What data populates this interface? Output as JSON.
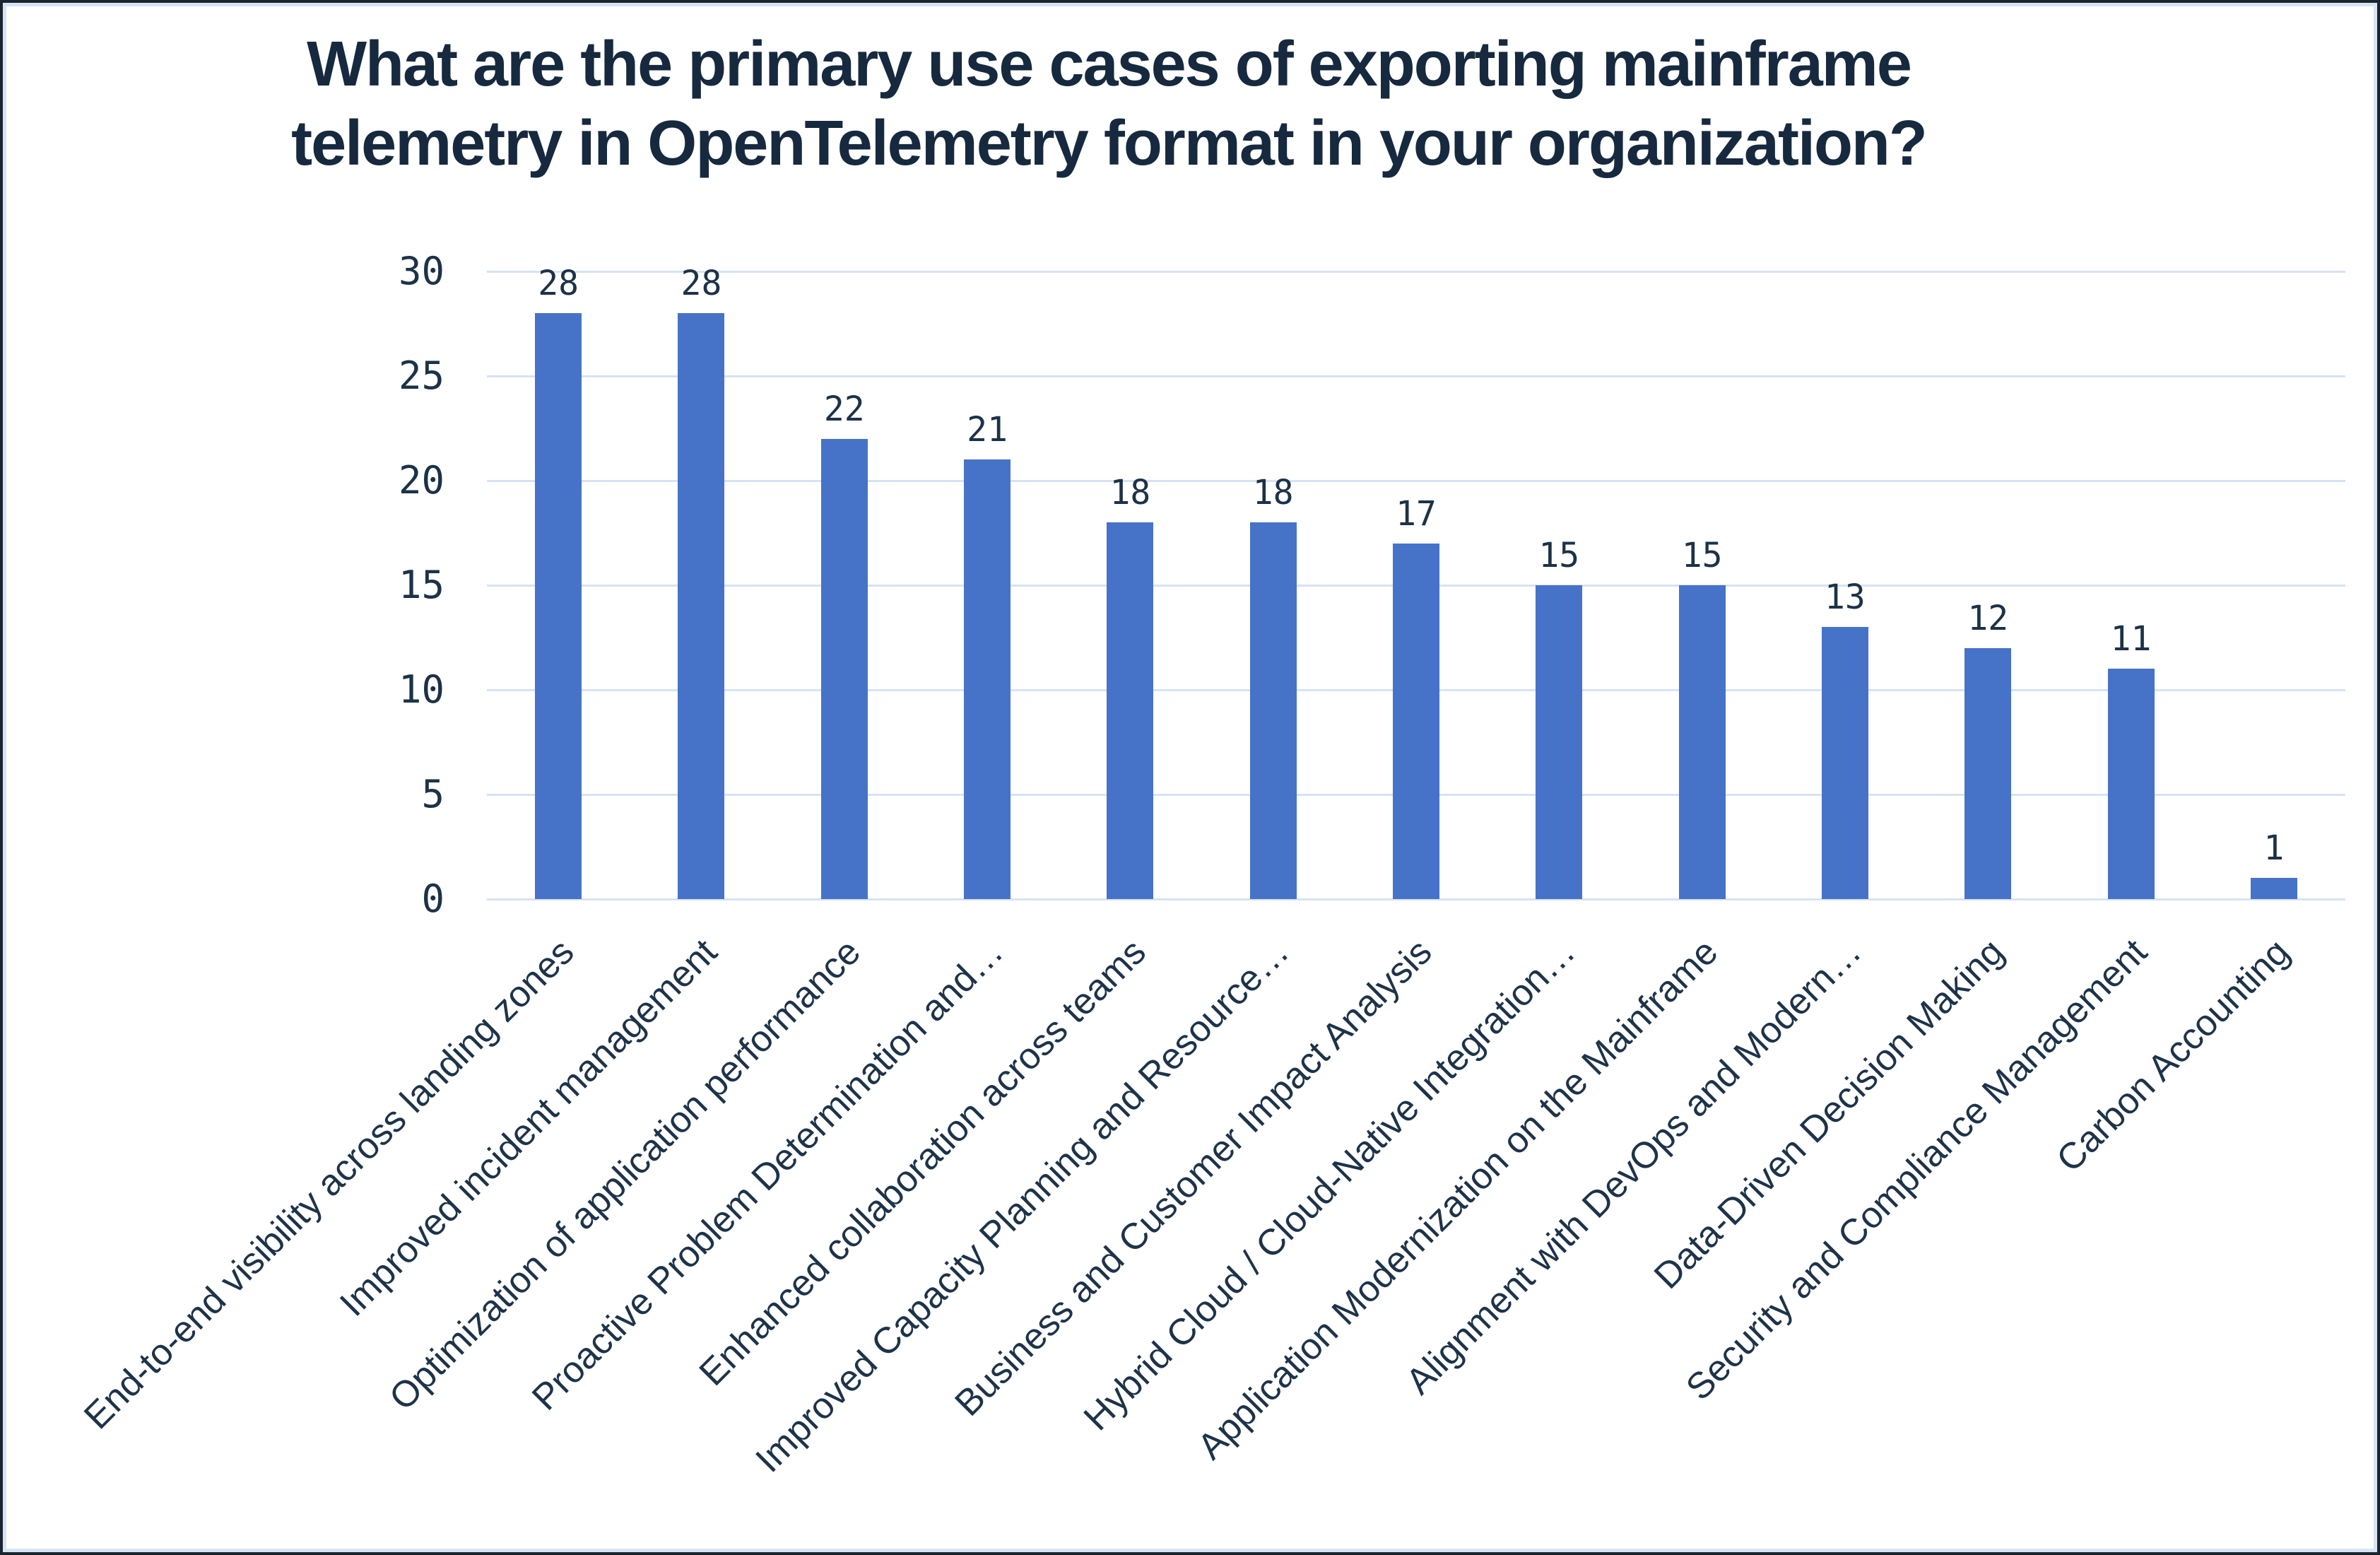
{
  "frame": {
    "background": "#ffffff",
    "outer_border_color": "#1a2530",
    "inner_border_color": "#d6e4f4"
  },
  "title": {
    "text": "What are the primary use cases of exporting mainframe telemetry in OpenTelemetry format in your organization?",
    "lines": [
      "What are the primary use cases of exporting mainframe",
      "telemetry in OpenTelemetry format in your organization?"
    ],
    "color": "#16293e"
  },
  "chart_data": {
    "type": "bar",
    "title": "What are the primary use cases of exporting mainframe telemetry in OpenTelemetry format in your organization?",
    "categories": [
      "End-to-end visibility across landing zones",
      "Improved incident management",
      "Optimization of application performance",
      "Proactive Problem Determination and…",
      "Enhanced collaboration across teams",
      "Improved Capacity Planning and Resource…",
      "Business and Customer Impact Analysis",
      "Hybrid Cloud / Cloud-Native Integration…",
      "Application Modernization on the Mainframe",
      "Alignment with DevOps and Modern…",
      "Data-Driven Decision Making",
      "Security and Compliance Management",
      "Carbon Accounting"
    ],
    "values": [
      28,
      28,
      22,
      21,
      18,
      18,
      17,
      15,
      15,
      13,
      12,
      11,
      1
    ],
    "xlabel": "",
    "ylabel": "",
    "ylim": [
      0,
      30
    ],
    "yticks": [
      0,
      5,
      10,
      15,
      20,
      25,
      30
    ],
    "grid": "horizontal",
    "legend": "none",
    "data_labels": true,
    "bar_color": "#4673c8",
    "gridline_color": "#d7e3f4",
    "text_color": "#1c3247",
    "x_label_rotation_deg": -45
  }
}
